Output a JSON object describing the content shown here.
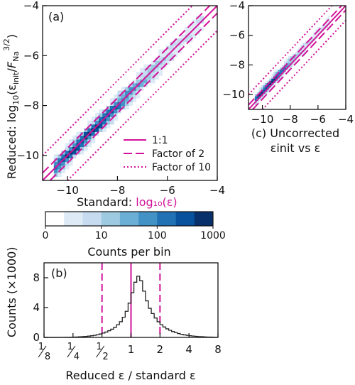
{
  "colors": {
    "reference_lines": "#d1129a",
    "histogram_step": "#222222",
    "axis": "#111111",
    "colormap": [
      "#ffffff",
      "#deebf7",
      "#c6dbef",
      "#9ecae1",
      "#6baed6",
      "#4292c6",
      "#2171b5",
      "#08519c",
      "#08306b"
    ]
  },
  "chart_data": [
    {
      "id": "a",
      "type": "heatmap",
      "panel_label": "(a)",
      "xlabel_prefix": "Standard: ",
      "xlabel_math": "log₁₀(ε)",
      "ylabel": "Reduced: log₁₀(εinit/FNa^(3/2))",
      "ylabel_parts": [
        "Reduced: log",
        "10",
        "(ε",
        "init",
        "/",
        "F",
        "Na",
        "3/2",
        ")"
      ],
      "xlim": [
        -11,
        -4
      ],
      "ylim": [
        -11,
        -4
      ],
      "x_ticks": [
        -10,
        -8,
        -6,
        -4
      ],
      "y_ticks": [
        -10,
        -8,
        -6,
        -4
      ],
      "x_tick_labels": [
        "−10",
        "−8",
        "−6",
        "−4"
      ],
      "y_tick_labels": [
        "−10",
        "−8",
        "−6",
        "−4"
      ],
      "density_ridge": {
        "x_range": [
          -10.6,
          -4.6
        ],
        "offset": 0.0,
        "x_spread_sigma": 1.6,
        "x_center": -9.2,
        "perp_sigma": 0.2
      },
      "reference_lines": [
        {
          "label": "1:1",
          "style": "solid",
          "offset_log10": 0
        },
        {
          "label": "Factor of 2",
          "style": "dashed",
          "offset_log10": 0.301
        },
        {
          "label": "Factor of 10",
          "style": "dotted",
          "offset_log10": 1
        }
      ],
      "legend": {
        "placement": "bottom-right",
        "entries": [
          "1:1",
          "Factor of 2",
          "Factor of 10"
        ]
      }
    },
    {
      "id": "c",
      "type": "heatmap",
      "caption_lines": [
        "(c) Uncorrected",
        "εinit vs ε"
      ],
      "xlim": [
        -11,
        -4
      ],
      "ylim": [
        -11,
        -4
      ],
      "x_ticks": [
        -10,
        -8,
        -6,
        -4
      ],
      "y_ticks": [
        -10,
        -8,
        -6,
        -4
      ],
      "x_tick_labels": [
        "−10",
        "−8",
        "−6",
        "−4"
      ],
      "y_tick_labels": [
        "−10",
        "−8",
        "−6",
        "−4"
      ],
      "density_ridge": {
        "x_range": [
          -10.6,
          -5.2
        ],
        "offset": 0.2,
        "x_spread_sigma": 1.2,
        "x_center": -9.6,
        "perp_sigma": 0.18
      },
      "reference_lines": [
        {
          "label": "1:1",
          "style": "solid",
          "offset_log10": 0
        },
        {
          "label": "Factor of 2",
          "style": "dashed",
          "offset_log10": 0.301
        },
        {
          "label": "Factor of 10",
          "style": "dotted",
          "offset_log10": 1
        }
      ]
    },
    {
      "id": "colorbar",
      "type": "colorbar",
      "scale": "log",
      "range": [
        1,
        1000
      ],
      "tick_values": [
        1,
        10,
        100,
        1000
      ],
      "tick_labels": [
        "0",
        "10",
        "100",
        "1000"
      ],
      "label": "Counts per bin",
      "bins": 9
    },
    {
      "id": "b",
      "type": "histogram",
      "panel_label": "(b)",
      "xlabel": "Reduced ε / standard ε",
      "ylabel": "Counts (×1000)",
      "x_scale": "log2",
      "xlim": [
        0.125,
        8
      ],
      "ylim": [
        0,
        10
      ],
      "x_ticks": [
        0.125,
        0.25,
        0.5,
        1,
        2,
        4,
        8
      ],
      "x_tick_labels": [
        {
          "num": "1",
          "den": "8"
        },
        {
          "num": "1",
          "den": "4"
        },
        {
          "num": "1",
          "den": "2"
        },
        {
          "text": "1"
        },
        {
          "text": "2"
        },
        {
          "text": "4"
        },
        {
          "text": "8"
        }
      ],
      "y_ticks": [
        0,
        4,
        8
      ],
      "y_tick_labels": [
        "0",
        "4",
        "8"
      ],
      "bin_log2_edges_step": 0.1,
      "counts_thousands": [
        0.0,
        0.0,
        0.0,
        0.0,
        0.0,
        0.01,
        0.01,
        0.02,
        0.02,
        0.03,
        0.04,
        0.06,
        0.08,
        0.1,
        0.13,
        0.17,
        0.22,
        0.28,
        0.36,
        0.46,
        0.58,
        0.72,
        0.9,
        1.1,
        1.35,
        1.7,
        2.1,
        2.7,
        3.5,
        4.6,
        6.0,
        7.4,
        8.2,
        7.6,
        6.2,
        4.9,
        3.9,
        3.2,
        2.6,
        2.1,
        1.7,
        1.4,
        1.15,
        0.95,
        0.78,
        0.64,
        0.52,
        0.42,
        0.34,
        0.28,
        0.22,
        0.18,
        0.14,
        0.11,
        0.09,
        0.07,
        0.05,
        0.04,
        0.03,
        0.02
      ],
      "reference_lines": [
        {
          "x": 1,
          "style": "solid"
        },
        {
          "x": 0.5,
          "style": "dashed"
        },
        {
          "x": 2,
          "style": "dashed"
        }
      ]
    }
  ]
}
